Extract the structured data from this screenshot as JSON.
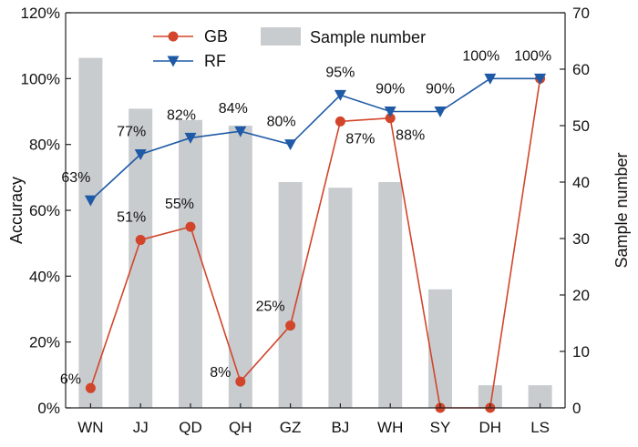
{
  "chart_data": {
    "type": "bar+line",
    "categories": [
      "WN",
      "JJ",
      "QD",
      "QH",
      "GZ",
      "BJ",
      "WH",
      "SY",
      "DH",
      "LS"
    ],
    "bar_series": {
      "name": "Sample number",
      "axis": "right",
      "values": [
        62,
        53,
        51,
        50,
        40,
        39,
        40,
        21,
        4,
        4
      ],
      "color": "#c8cccf"
    },
    "line_series": [
      {
        "name": "GB",
        "axis": "left",
        "values": [
          6,
          51,
          55,
          8,
          25,
          87,
          88,
          0,
          0,
          100
        ],
        "labels": [
          "6%",
          "51%",
          "55%",
          "8%",
          "25%",
          "87%",
          "88%",
          "",
          "",
          ""
        ],
        "marker": "circle",
        "color": "#d2452a"
      },
      {
        "name": "RF",
        "axis": "left",
        "values": [
          63,
          77,
          82,
          84,
          80,
          95,
          90,
          90,
          100,
          100
        ],
        "labels": [
          "63%",
          "77%",
          "82%",
          "84%",
          "80%",
          "95%",
          "90%",
          "90%",
          "100%",
          "100%"
        ],
        "marker": "triangle-down",
        "color": "#1f5aa6"
      }
    ],
    "ylabel_left": "Accuracy",
    "ylabel_right": "Sample number",
    "ylim_left": [
      0,
      120
    ],
    "yticks_left": [
      "0%",
      "20%",
      "40%",
      "60%",
      "80%",
      "100%",
      "120%"
    ],
    "ylim_right": [
      0,
      70
    ],
    "yticks_right": [
      "0",
      "10",
      "20",
      "30",
      "40",
      "50",
      "60",
      "70"
    ],
    "legend_placement": "top-left",
    "grid": false
  }
}
